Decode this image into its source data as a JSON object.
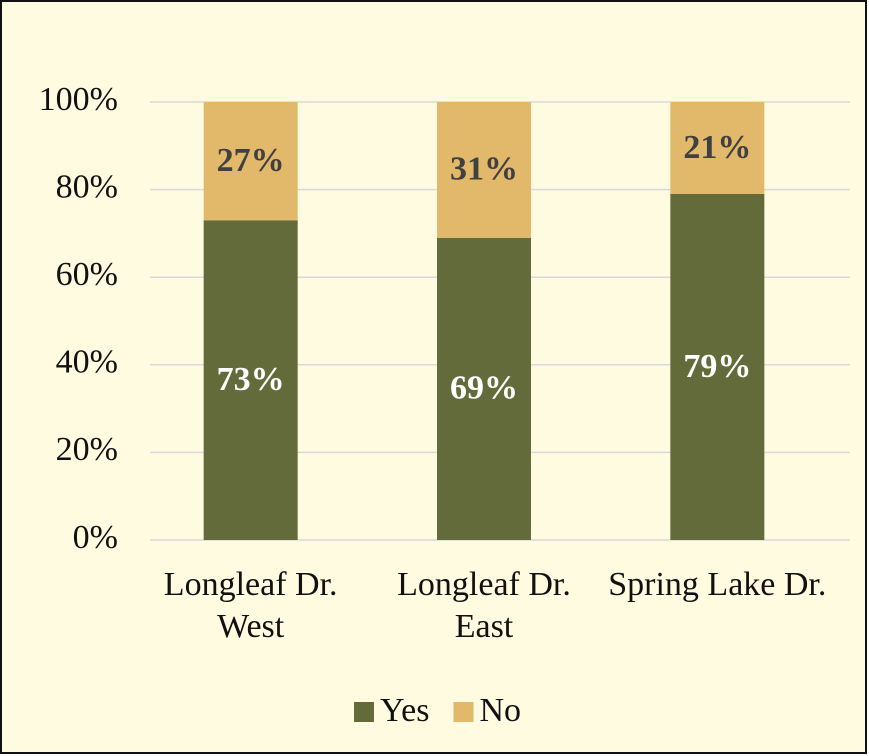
{
  "chart_data": {
    "type": "stacked_bar",
    "categories": [
      "Longleaf Dr. West",
      "Longleaf Dr. East",
      "Spring Lake Dr."
    ],
    "series": [
      {
        "name": "Yes",
        "color": "#636b3b",
        "values": [
          73,
          69,
          79
        ],
        "value_labels": [
          "73%",
          "69%",
          "79%"
        ]
      },
      {
        "name": "No",
        "color": "#e2b96b",
        "values": [
          27,
          31,
          21
        ],
        "value_labels": [
          "27%",
          "31%",
          "21%"
        ]
      }
    ],
    "ylim": [
      0,
      100
    ],
    "yticks": [
      {
        "value": 0,
        "label": "0%"
      },
      {
        "value": 20,
        "label": "20%"
      },
      {
        "value": 40,
        "label": "40%"
      },
      {
        "value": 60,
        "label": "60%"
      },
      {
        "value": 80,
        "label": "80%"
      },
      {
        "value": 100,
        "label": "100%"
      }
    ],
    "grid": true,
    "legend": "bottom"
  }
}
